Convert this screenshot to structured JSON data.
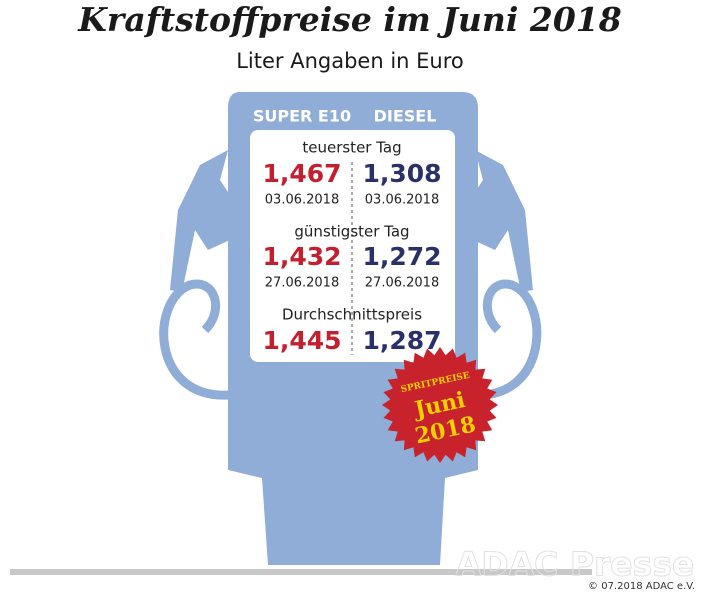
{
  "header": {
    "title": "Kraftstoffpreise im Juni 2018",
    "subtitle": "Liter Angaben in Euro"
  },
  "table": {
    "columns": [
      "SUPER E10",
      "DIESEL"
    ],
    "sections": [
      {
        "label": "teuerster Tag",
        "prices": [
          "1,467",
          "1,308"
        ],
        "dates": [
          "03.06.2018",
          "03.06.2018"
        ]
      },
      {
        "label": "günstigster Tag",
        "prices": [
          "1,432",
          "1,272"
        ],
        "dates": [
          "27.06.2018",
          "27.06.2018"
        ]
      },
      {
        "label": "Durchschnittspreis",
        "prices": [
          "1,445",
          "1,287"
        ]
      }
    ]
  },
  "badge": {
    "lines": [
      "SPRITPREISE",
      "Juni",
      "2018"
    ]
  },
  "footer": {
    "watermark": "ADAC Presse",
    "copyright": "© 07.2018 ADAC e.V."
  }
}
